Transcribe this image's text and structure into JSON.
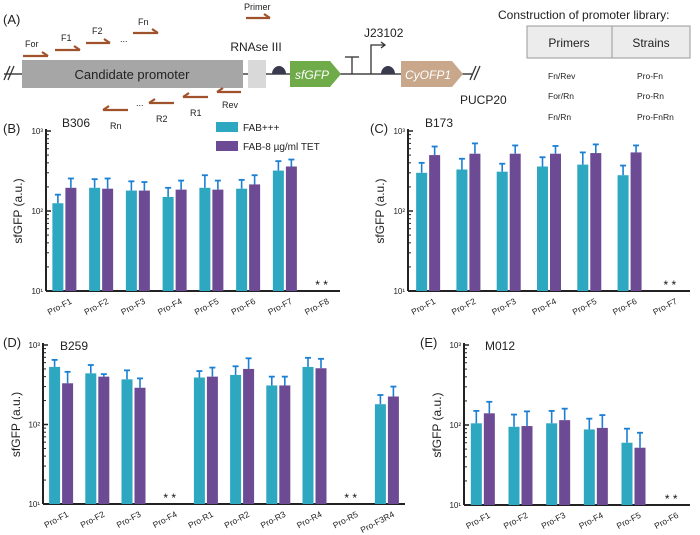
{
  "colors": {
    "fab": "#2ea7c1",
    "tet": "#6c4b94",
    "error": "#1b7fd3",
    "primer": "#a0522d",
    "sfgfp": "#6fab48",
    "cyofp": "#c8a78a",
    "promoter_box": "#a6a6a6",
    "rnase_box": "#d9d9d9"
  },
  "panel_a": {
    "label": "(A)",
    "candidate_promoter": "Candidate promoter",
    "rnase": "RNAse III",
    "sfgfp": "sfGFP",
    "j23102": "J23102",
    "cyofp": "CyOFP1",
    "plasmid": "PUCP20",
    "primer_legend": "Primer",
    "forward_primers": [
      "For",
      "F1",
      "F2",
      "Fn"
    ],
    "reverse_primers": [
      "Rev",
      "R1",
      "R2",
      "Rn"
    ],
    "ellipsis": "...",
    "library_title": "Construction of promoter library:",
    "table": {
      "headers": [
        "Primers",
        "Strains"
      ],
      "rows": [
        [
          "Fn/Rev",
          "Pro-Fn"
        ],
        [
          "For/Rn",
          "Pro-Rn"
        ],
        [
          "Fn/Rn",
          "Pro-FnRn"
        ]
      ]
    }
  },
  "legend": [
    "FAB+++",
    "FAB-8 µg/ml TET"
  ],
  "chart_data": [
    {
      "type": "bar",
      "panel": "(B)",
      "title": "B306",
      "ylabel": "sfGFP (a.u.)",
      "yscale": "log",
      "ylim": [
        10,
        1000
      ],
      "yticks": [
        "10¹",
        "10²",
        "10³"
      ],
      "missing_marker": "* *",
      "categories": [
        "Pro-F1",
        "Pro-F2",
        "Pro-F3",
        "Pro-F4",
        "Pro-F5",
        "Pro-F6",
        "Pro-F7",
        "Pro-F8"
      ],
      "series": [
        {
          "name": "FAB+++",
          "values": [
            125,
            195,
            180,
            150,
            195,
            190,
            320,
            null
          ],
          "err_upper": [
            160,
            250,
            235,
            195,
            280,
            245,
            420,
            null
          ]
        },
        {
          "name": "FAB-8 µg/ml TET",
          "values": [
            195,
            190,
            180,
            185,
            185,
            215,
            360,
            null
          ],
          "err_upper": [
            255,
            255,
            230,
            240,
            240,
            280,
            440,
            null
          ]
        }
      ]
    },
    {
      "type": "bar",
      "panel": "(C)",
      "title": "B173",
      "ylabel": "sfGFP (a.u.)",
      "yscale": "log",
      "ylim": [
        10,
        1000
      ],
      "yticks": [
        "10¹",
        "10²",
        "10³"
      ],
      "missing_marker": "* *",
      "categories": [
        "Pro-F1",
        "Pro-F2",
        "Pro-F3",
        "Pro-F4",
        "Pro-F5",
        "Pro-F6",
        "Pro-F7"
      ],
      "series": [
        {
          "name": "FAB+++",
          "values": [
            300,
            330,
            310,
            360,
            380,
            280,
            null
          ],
          "err_upper": [
            400,
            450,
            390,
            470,
            540,
            370,
            null
          ]
        },
        {
          "name": "FAB-8 µg/ml TET",
          "values": [
            500,
            520,
            520,
            520,
            530,
            540,
            null
          ],
          "err_upper": [
            640,
            700,
            660,
            650,
            680,
            660,
            null
          ]
        }
      ]
    },
    {
      "type": "bar",
      "panel": "(D)",
      "title": "B259",
      "ylabel": "sfGFP (a.u.)",
      "yscale": "log",
      "ylim": [
        10,
        1000
      ],
      "yticks": [
        "10¹",
        "10²",
        "10³"
      ],
      "missing_marker": "* *",
      "categories": [
        "Pro-F1",
        "Pro-F2",
        "Pro-F3",
        "Pro-F4",
        "Pro-R1",
        "Pro-R2",
        "Pro-R3",
        "Pro-R4",
        "Pro-R5",
        "Pro-F3R4"
      ],
      "series": [
        {
          "name": "FAB+++",
          "values": [
            530,
            440,
            370,
            null,
            390,
            420,
            310,
            530,
            null,
            180
          ],
          "err_upper": [
            650,
            560,
            480,
            null,
            470,
            540,
            400,
            690,
            null,
            235
          ]
        },
        {
          "name": "FAB-8 µg/ml TET",
          "values": [
            330,
            400,
            290,
            null,
            400,
            500,
            310,
            510,
            null,
            225
          ],
          "err_upper": [
            460,
            430,
            380,
            null,
            520,
            680,
            400,
            670,
            null,
            300
          ]
        }
      ]
    },
    {
      "type": "bar",
      "panel": "(E)",
      "title": "M012",
      "ylabel": "sfGFP (a.u.)",
      "yscale": "log",
      "ylim": [
        10,
        1000
      ],
      "yticks": [
        "10¹",
        "10²",
        "10³"
      ],
      "missing_marker": "* *",
      "categories": [
        "Pro-F1",
        "Pro-F2",
        "Pro-F3",
        "Pro-F4",
        "Pro-F5",
        "Pro-F6"
      ],
      "series": [
        {
          "name": "FAB+++",
          "values": [
            105,
            95,
            105,
            88,
            60,
            null
          ],
          "err_upper": [
            150,
            135,
            150,
            120,
            90,
            null
          ]
        },
        {
          "name": "FAB-8 µg/ml TET",
          "values": [
            140,
            97,
            115,
            92,
            52,
            null
          ],
          "err_upper": [
            195,
            148,
            160,
            133,
            80,
            null
          ]
        }
      ]
    }
  ]
}
